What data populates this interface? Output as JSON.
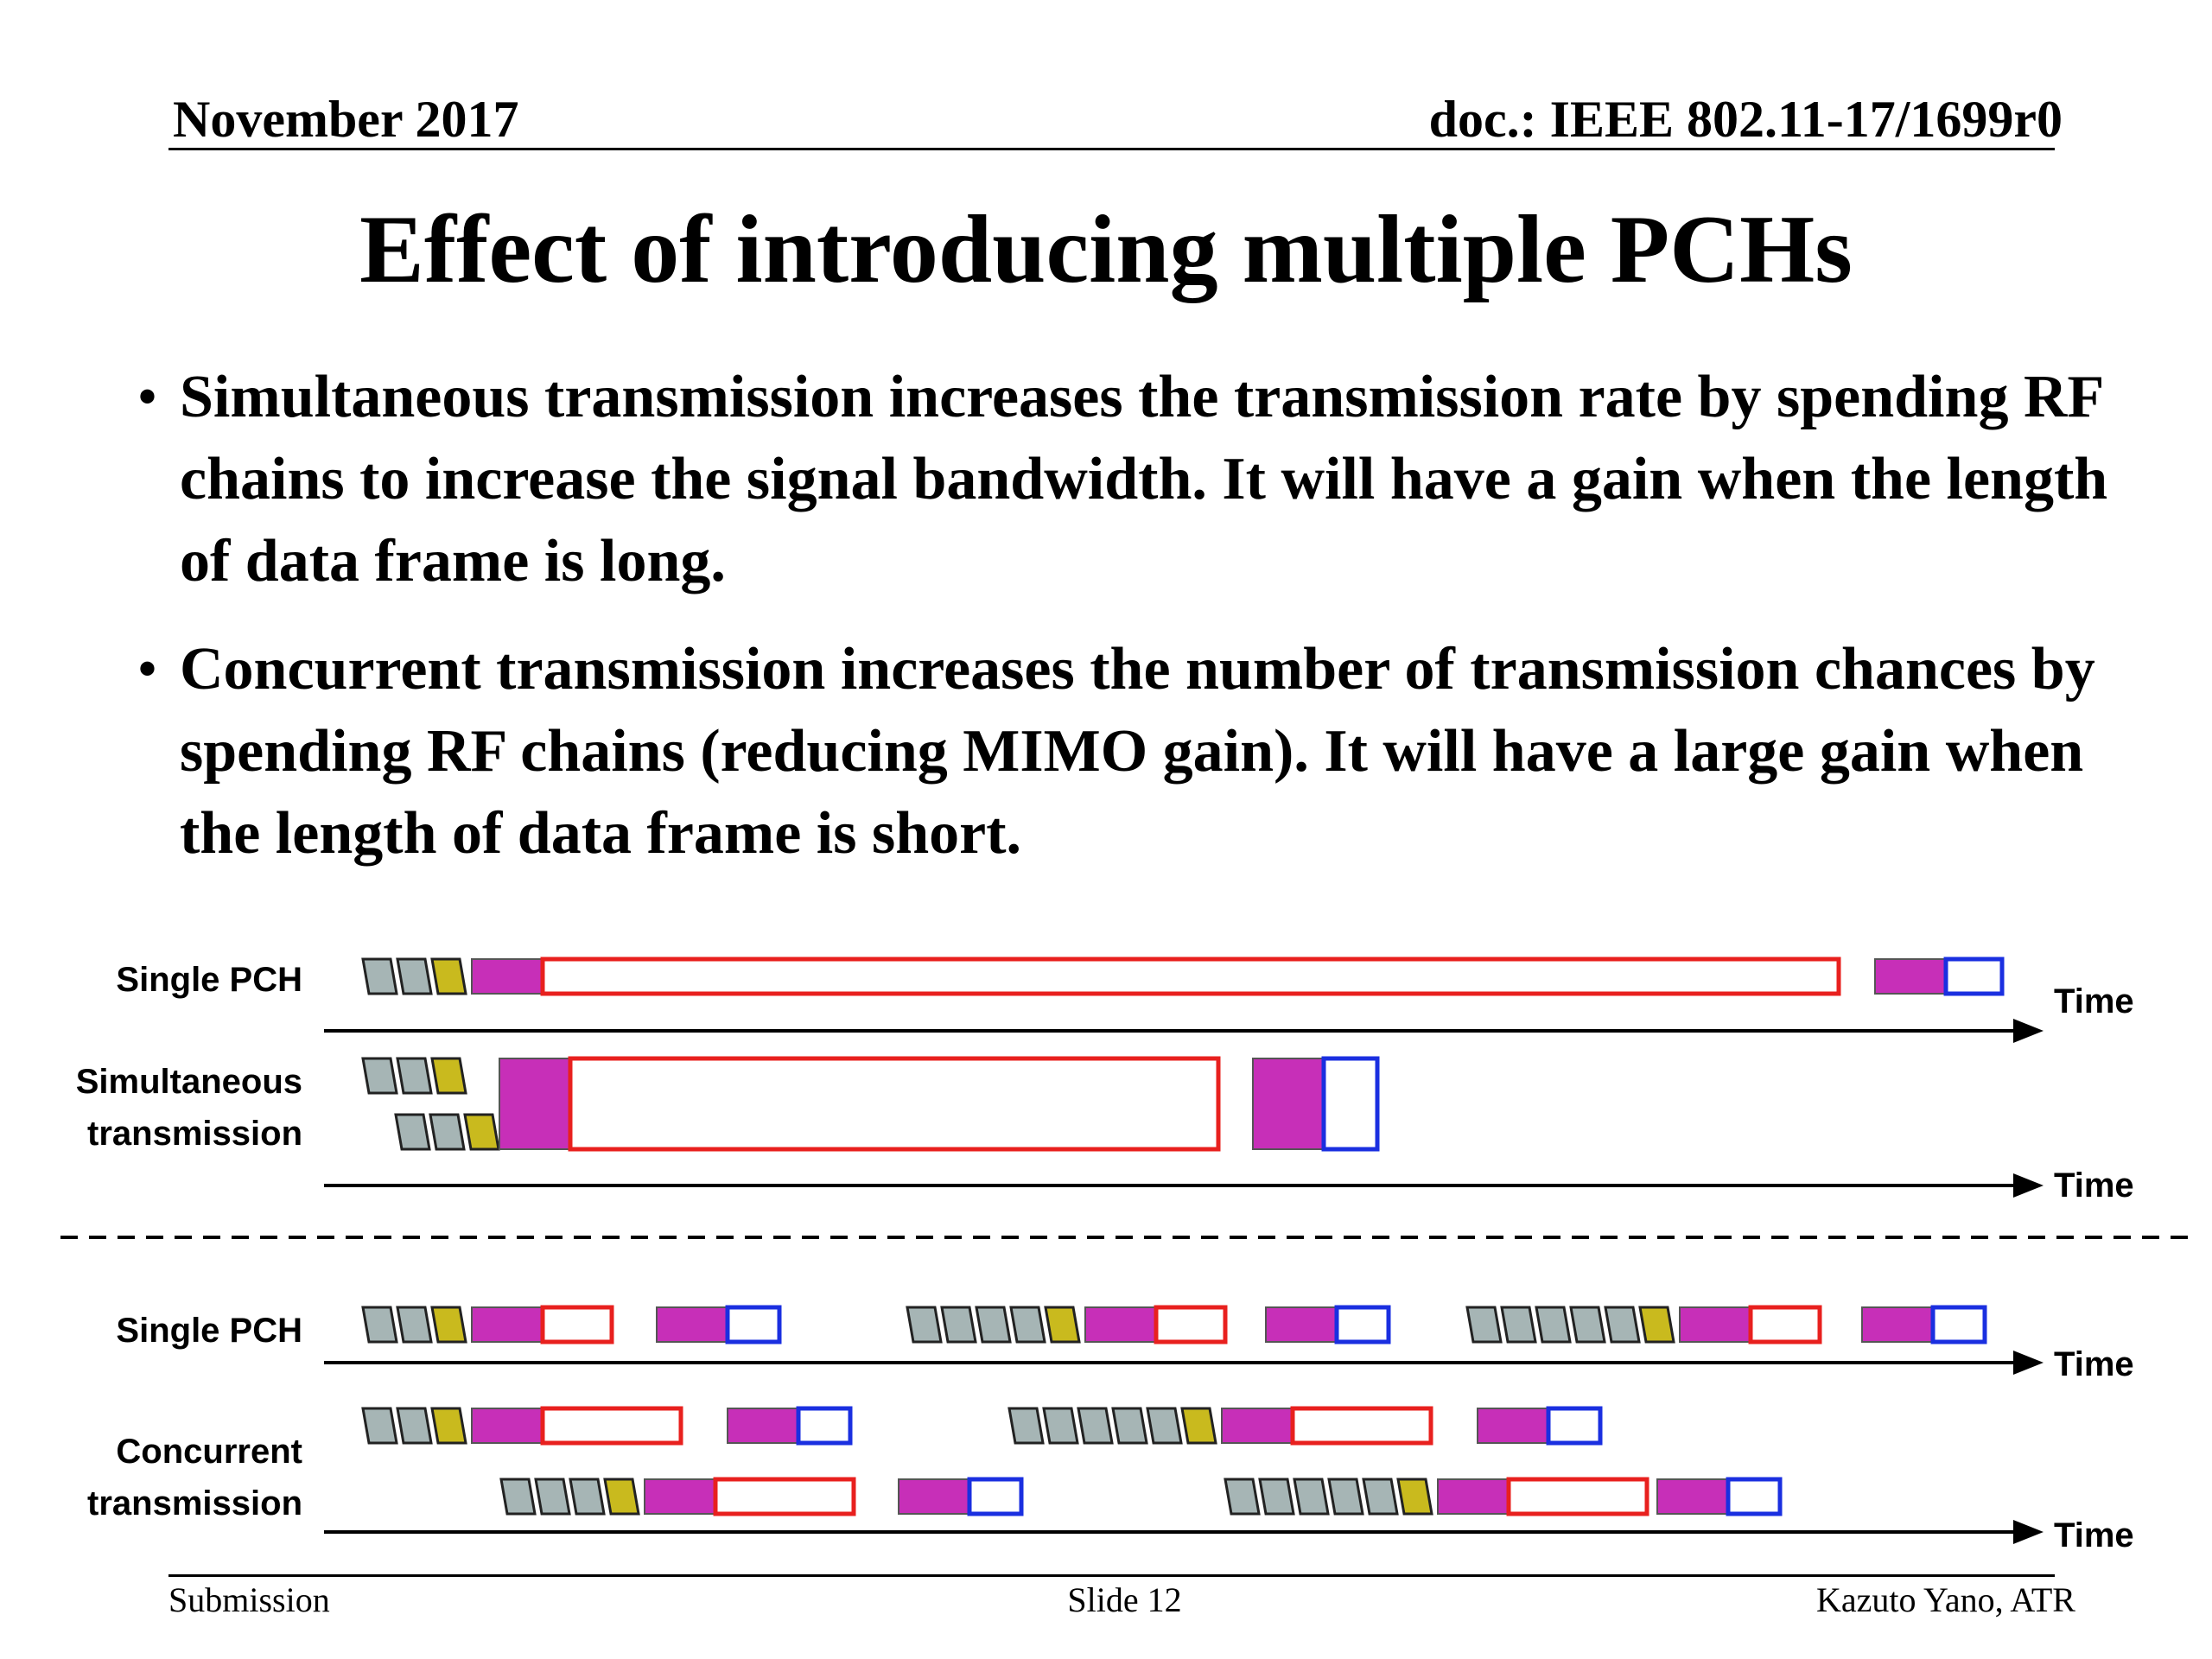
{
  "header": {
    "date": "November 2017",
    "doc_id": "doc.: IEEE 802.11-17/1699r0"
  },
  "title": "Effect of introducing multiple PCHs",
  "bullets": [
    "Simultaneous transmission increases the transmission rate by spending RF chains to increase the signal bandwidth.  It will have a gain when the length of data frame is long.",
    "Concurrent transmission increases the number of transmission chances by spending RF chains (reducing MIMO gain). It will have a large gain when the length of data frame is short."
  ],
  "diagram": {
    "labels": {
      "single_pch_top": "Single PCH",
      "simultaneous": [
        "Simultaneous",
        "transmission"
      ],
      "single_pch_bottom": "Single PCH",
      "concurrent": [
        "Concurrent",
        "transmission"
      ]
    },
    "axis_label": "Time",
    "colors": {
      "backoff_slot": "#A6B5B5",
      "last_slot": "#C9BA1E",
      "preamble": "#C72FB8",
      "data_frame": "#E8201E",
      "ack": "#1A2FE0"
    }
  },
  "footer": {
    "left": "Submission",
    "center": "Slide 12",
    "right": "Kazuto Yano, ATR"
  }
}
